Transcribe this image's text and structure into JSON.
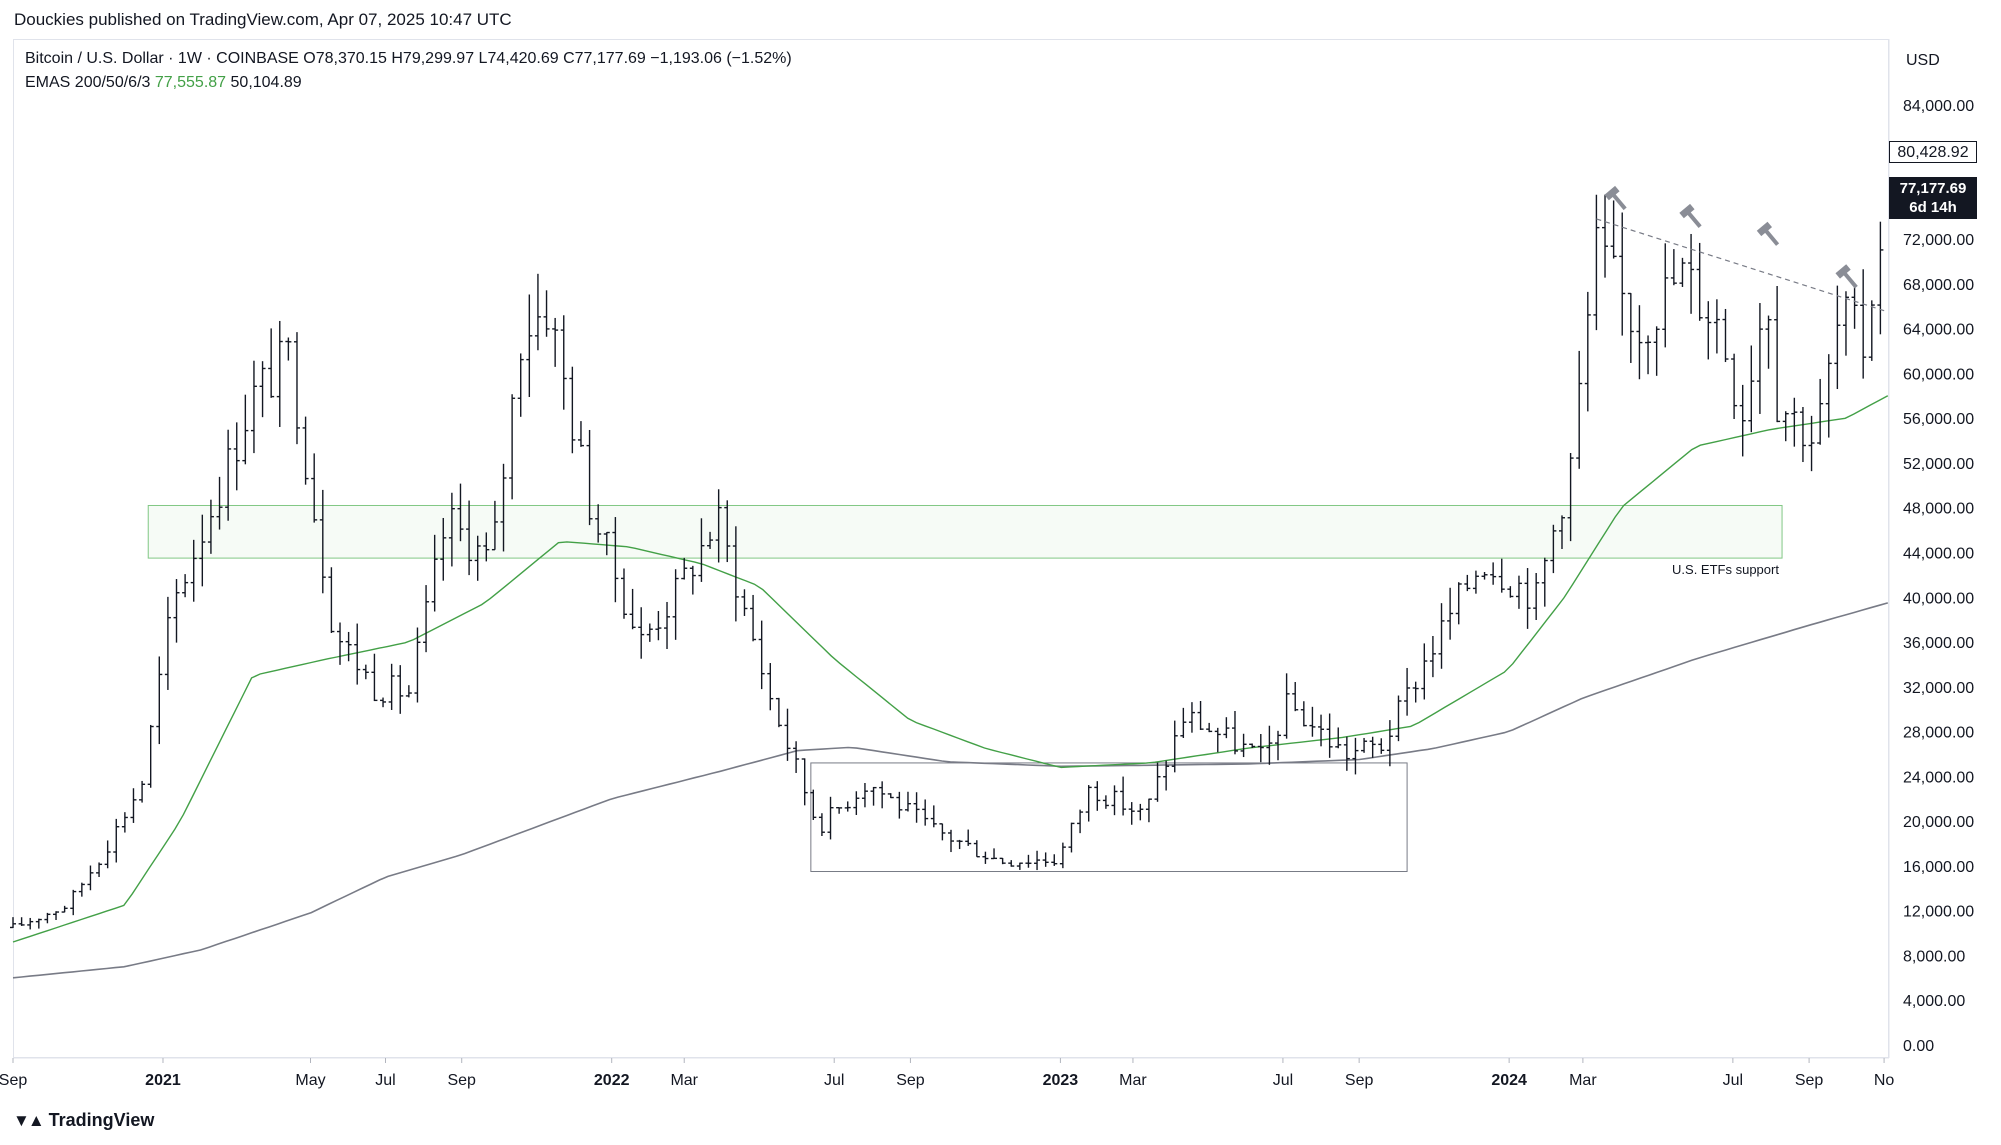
{
  "publisher": "Douckies published on TradingView.com, Apr 07, 2025 10:47 UTC",
  "legend": {
    "symbol": "Bitcoin / U.S. Dollar · 1W · COINBASE",
    "ohlc": "O78,370.15 H79,299.97 L74,420.69 C77,177.69 −1,193.06 (−1.52%)",
    "ema_label": "EMAS 200/50/6/3",
    "ema_value_1": "77,555.87",
    "ema_value_2": "50,104.89"
  },
  "currency": "USD",
  "price_tags": {
    "high_alert": "80,428.92",
    "last_price": "77,177.69",
    "countdown": "6d 14h"
  },
  "brand": {
    "name": "TradingView",
    "logo_icon": "tradingview-logo-icon"
  },
  "colors": {
    "ema50": "#43a047",
    "ema200": "#787b86",
    "bars": "#131722",
    "zone": "#81c784"
  },
  "chart_data": {
    "type": "ohlc-bar",
    "interval": "1W",
    "ylim": [
      0,
      88000
    ],
    "y_ticks": [
      "0.00",
      "4,000.00",
      "8,000.00",
      "12,000.00",
      "16,000.00",
      "20,000.00",
      "24,000.00",
      "28,000.00",
      "32,000.00",
      "36,000.00",
      "40,000.00",
      "44,000.00",
      "48,000.00",
      "52,000.00",
      "56,000.00",
      "60,000.00",
      "64,000.00",
      "68,000.00",
      "72,000.00",
      "76,000.00",
      "80,000.00",
      "84,000.00"
    ],
    "y_tick_values": [
      0,
      4000,
      8000,
      12000,
      16000,
      20000,
      24000,
      28000,
      32000,
      36000,
      40000,
      44000,
      48000,
      52000,
      56000,
      60000,
      64000,
      68000,
      72000,
      76000,
      80000,
      84000
    ],
    "x_ticks": [
      {
        "label": "Sep",
        "date": "2020-09-01",
        "bold": false
      },
      {
        "label": "2021",
        "date": "2021-01-01",
        "bold": true
      },
      {
        "label": "May",
        "date": "2021-05-01",
        "bold": false
      },
      {
        "label": "Jul",
        "date": "2021-07-01",
        "bold": false
      },
      {
        "label": "Sep",
        "date": "2021-09-01",
        "bold": false
      },
      {
        "label": "2022",
        "date": "2022-01-01",
        "bold": true
      },
      {
        "label": "Mar",
        "date": "2022-03-01",
        "bold": false
      },
      {
        "label": "Jul",
        "date": "2022-07-01",
        "bold": false
      },
      {
        "label": "Sep",
        "date": "2022-09-01",
        "bold": false
      },
      {
        "label": "2023",
        "date": "2023-01-01",
        "bold": true
      },
      {
        "label": "Mar",
        "date": "2023-03-01",
        "bold": false
      },
      {
        "label": "Jul",
        "date": "2023-07-01",
        "bold": false
      },
      {
        "label": "Sep",
        "date": "2023-09-01",
        "bold": false
      },
      {
        "label": "2024",
        "date": "2024-01-01",
        "bold": true
      },
      {
        "label": "Mar",
        "date": "2024-03-01",
        "bold": false
      },
      {
        "label": "Jul",
        "date": "2024-07-01",
        "bold": false
      },
      {
        "label": "Sep",
        "date": "2024-09-01",
        "bold": false
      },
      {
        "label": "No",
        "date": "2024-11-01",
        "bold": false
      }
    ],
    "xlim": [
      "2020-09-01",
      "2024-11-05"
    ],
    "anchors": [
      [
        "2020-09-01",
        10500
      ],
      [
        "2020-10-15",
        12500
      ],
      [
        "2020-11-15",
        17500
      ],
      [
        "2020-12-15",
        23500
      ],
      [
        "2021-01-08",
        39000
      ],
      [
        "2021-02-20",
        51000
      ],
      [
        "2021-03-15",
        58000
      ],
      [
        "2021-04-14",
        61500
      ],
      [
        "2021-05-20",
        37000
      ],
      [
        "2021-06-22",
        32000
      ],
      [
        "2021-07-20",
        31500
      ],
      [
        "2021-08-20",
        47000
      ],
      [
        "2021-09-25",
        43000
      ],
      [
        "2021-10-20",
        64000
      ],
      [
        "2021-11-10",
        66000
      ],
      [
        "2021-12-15",
        48000
      ],
      [
        "2022-01-24",
        36000
      ],
      [
        "2022-02-20",
        40000
      ],
      [
        "2022-03-28",
        47000
      ],
      [
        "2022-05-10",
        31000
      ],
      [
        "2022-06-18",
        19500
      ],
      [
        "2022-07-28",
        23500
      ],
      [
        "2022-09-20",
        19200
      ],
      [
        "2022-11-12",
        16500
      ],
      [
        "2022-12-30",
        16600
      ],
      [
        "2023-01-25",
        23000
      ],
      [
        "2023-03-10",
        20500
      ],
      [
        "2023-04-12",
        29500
      ],
      [
        "2023-06-15",
        25500
      ],
      [
        "2023-07-05",
        30500
      ],
      [
        "2023-08-20",
        26000
      ],
      [
        "2023-09-20",
        26800
      ],
      [
        "2023-10-25",
        34500
      ],
      [
        "2023-12-10",
        43500
      ],
      [
        "2024-01-23",
        40000
      ],
      [
        "2024-02-20",
        52000
      ],
      [
        "2024-03-12",
        71000
      ],
      [
        "2024-04-15",
        64000
      ],
      [
        "2024-05-20",
        69000
      ],
      [
        "2024-06-20",
        64500
      ],
      [
        "2024-07-08",
        56500
      ],
      [
        "2024-07-29",
        68000
      ],
      [
        "2024-08-05",
        58000
      ],
      [
        "2024-09-06",
        54000
      ],
      [
        "2024-09-27",
        65500
      ],
      [
        "2024-10-15",
        62500
      ],
      [
        "2024-10-29",
        72500
      ],
      [
        "2024-11-04",
        77177.69
      ]
    ],
    "ema50_anchors": [
      [
        "2020-09-01",
        9200
      ],
      [
        "2020-12-01",
        12500
      ],
      [
        "2021-01-15",
        20000
      ],
      [
        "2021-03-15",
        33000
      ],
      [
        "2021-05-15",
        34500
      ],
      [
        "2021-07-20",
        36000
      ],
      [
        "2021-09-20",
        39500
      ],
      [
        "2021-11-20",
        45000
      ],
      [
        "2022-01-15",
        44500
      ],
      [
        "2022-03-15",
        43000
      ],
      [
        "2022-05-01",
        41000
      ],
      [
        "2022-07-01",
        34500
      ],
      [
        "2022-09-01",
        29000
      ],
      [
        "2022-11-01",
        26500
      ],
      [
        "2023-01-01",
        24800
      ],
      [
        "2023-03-15",
        25200
      ],
      [
        "2023-06-01",
        26500
      ],
      [
        "2023-08-20",
        27500
      ],
      [
        "2023-10-15",
        28500
      ],
      [
        "2023-12-31",
        33500
      ],
      [
        "2024-02-15",
        40000
      ],
      [
        "2024-04-01",
        48000
      ],
      [
        "2024-06-01",
        53500
      ],
      [
        "2024-08-01",
        55000
      ],
      [
        "2024-10-01",
        56000
      ],
      [
        "2024-11-04",
        58000
      ]
    ],
    "ema200_anchors": [
      [
        "2020-09-01",
        6000
      ],
      [
        "2020-12-01",
        7000
      ],
      [
        "2021-02-01",
        8500
      ],
      [
        "2021-05-01",
        11800
      ],
      [
        "2021-07-01",
        15000
      ],
      [
        "2021-09-01",
        17000
      ],
      [
        "2021-11-01",
        19500
      ],
      [
        "2022-01-01",
        22000
      ],
      [
        "2022-04-01",
        24500
      ],
      [
        "2022-06-01",
        26300
      ],
      [
        "2022-07-15",
        26600
      ],
      [
        "2022-10-01",
        25300
      ],
      [
        "2023-01-01",
        24900
      ],
      [
        "2023-06-01",
        25100
      ],
      [
        "2023-09-01",
        25500
      ],
      [
        "2023-11-01",
        26500
      ],
      [
        "2024-01-01",
        28000
      ],
      [
        "2024-03-01",
        31000
      ],
      [
        "2024-06-01",
        34500
      ],
      [
        "2024-09-01",
        37500
      ],
      [
        "2024-11-04",
        39500
      ]
    ],
    "support_zone": {
      "x": [
        "2020-12-20",
        "2024-08-10"
      ],
      "y": [
        43500,
        48200
      ],
      "label": "U.S. ETFs support"
    },
    "range_box": {
      "x": [
        "2022-06-12",
        "2023-10-10"
      ],
      "y": [
        15500,
        25200
      ]
    },
    "trendline": {
      "x": [
        "2024-03-12",
        "2024-11-04"
      ],
      "y": [
        73800,
        65500
      ]
    },
    "markers": [
      {
        "date": "2024-03-27",
        "y": 75800
      },
      {
        "date": "2024-05-27",
        "y": 74200
      },
      {
        "date": "2024-07-29",
        "y": 72600
      },
      {
        "date": "2024-10-01",
        "y": 68800
      }
    ]
  }
}
